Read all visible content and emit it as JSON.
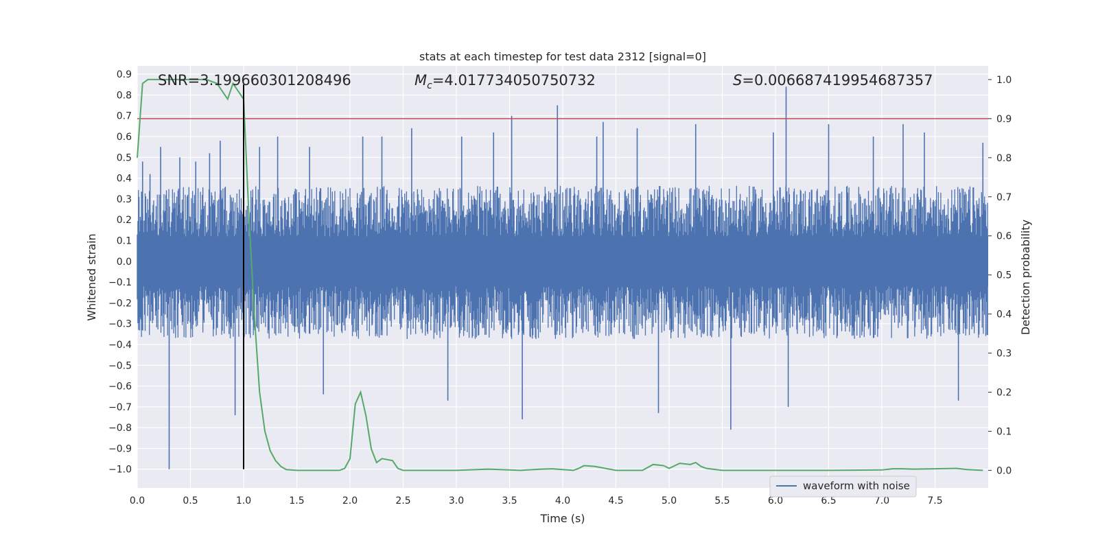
{
  "chart_data": {
    "type": "line",
    "title": "stats at each timestep for test data 2312 [signal=0]",
    "xlabel": "Time (s)",
    "ylabel_left": "Whitened strain",
    "ylabel_right": "Detection probability",
    "xlim": [
      0.0,
      8.0
    ],
    "ylim_left": [
      -1.09,
      0.94
    ],
    "ylim_right": [
      -0.045,
      1.035
    ],
    "x_ticks": [
      "0.0",
      "0.5",
      "1.0",
      "1.5",
      "2.0",
      "2.5",
      "3.0",
      "3.5",
      "4.0",
      "4.5",
      "5.0",
      "5.5",
      "6.0",
      "6.5",
      "7.0",
      "7.5"
    ],
    "y_ticks_left": [
      "0.9",
      "0.8",
      "0.7",
      "0.6",
      "0.5",
      "0.4",
      "0.3",
      "0.2",
      "0.1",
      "0.0",
      "-0.1",
      "-0.2",
      "-0.3",
      "-0.4",
      "-0.5",
      "-0.6",
      "-0.7",
      "-0.8",
      "-0.9",
      "-1.0"
    ],
    "y_ticks_right": [
      "1.0",
      "0.9",
      "0.8",
      "0.7",
      "0.6",
      "0.5",
      "0.4",
      "0.3",
      "0.2",
      "0.1",
      "0.0"
    ],
    "grid": true,
    "legend_position": "lower-right",
    "annotations": {
      "snr": "SNR=3.199660301208496",
      "mc_prefix": "M",
      "mc_sub": "c",
      "mc_value": "=4.017734050750732",
      "s_prefix": "S",
      "s_value": "=0.006687419954687357"
    },
    "threshold_line": {
      "axis": "right",
      "value": 0.9,
      "color": "#c44e52"
    },
    "vertical_marker": {
      "x": 1.0,
      "y_from": -1.0,
      "y_to": 0.85,
      "color": "#000000"
    },
    "waveform": {
      "name": "waveform with noise",
      "color": "#4c72b0",
      "x_range": [
        0.0,
        8.0
      ],
      "typical_upper": 0.33,
      "typical_lower": -0.34,
      "spikes": [
        {
          "x": 0.05,
          "y": 0.48
        },
        {
          "x": 0.12,
          "y": 0.42
        },
        {
          "x": 0.22,
          "y": 0.55
        },
        {
          "x": 0.3,
          "y": -1.0
        },
        {
          "x": 0.4,
          "y": 0.5
        },
        {
          "x": 0.55,
          "y": 0.48
        },
        {
          "x": 0.68,
          "y": 0.52
        },
        {
          "x": 0.78,
          "y": 0.58
        },
        {
          "x": 0.92,
          "y": -0.74
        },
        {
          "x": 1.15,
          "y": 0.55
        },
        {
          "x": 1.32,
          "y": 0.6
        },
        {
          "x": 1.62,
          "y": 0.55
        },
        {
          "x": 1.75,
          "y": -0.64
        },
        {
          "x": 2.12,
          "y": 0.6
        },
        {
          "x": 2.3,
          "y": 0.6
        },
        {
          "x": 2.58,
          "y": 0.64
        },
        {
          "x": 2.92,
          "y": -0.67
        },
        {
          "x": 3.05,
          "y": 0.6
        },
        {
          "x": 3.35,
          "y": 0.62
        },
        {
          "x": 3.52,
          "y": 0.7
        },
        {
          "x": 3.62,
          "y": -0.76
        },
        {
          "x": 3.95,
          "y": 0.75
        },
        {
          "x": 4.32,
          "y": 0.6
        },
        {
          "x": 4.38,
          "y": 0.67
        },
        {
          "x": 4.7,
          "y": 0.64
        },
        {
          "x": 4.9,
          "y": -0.73
        },
        {
          "x": 5.25,
          "y": 0.66
        },
        {
          "x": 5.58,
          "y": -0.81
        },
        {
          "x": 5.98,
          "y": 0.62
        },
        {
          "x": 6.1,
          "y": 0.84
        },
        {
          "x": 6.12,
          "y": -0.7
        },
        {
          "x": 6.5,
          "y": 0.66
        },
        {
          "x": 6.92,
          "y": 0.6
        },
        {
          "x": 7.2,
          "y": 0.66
        },
        {
          "x": 7.4,
          "y": 0.62
        },
        {
          "x": 7.72,
          "y": -0.67
        },
        {
          "x": 7.95,
          "y": 0.57
        }
      ]
    },
    "probability": {
      "color": "#55a868",
      "x": [
        0.0,
        0.05,
        0.1,
        0.15,
        0.25,
        0.45,
        0.65,
        0.75,
        0.8,
        0.85,
        0.9,
        0.95,
        1.0,
        1.05,
        1.1,
        1.15,
        1.2,
        1.25,
        1.3,
        1.35,
        1.4,
        1.5,
        1.6,
        1.7,
        1.8,
        1.85,
        1.9,
        1.95,
        2.0,
        2.05,
        2.1,
        2.15,
        2.2,
        2.25,
        2.3,
        2.4,
        2.45,
        2.5,
        2.6,
        2.7,
        2.8,
        3.0,
        3.3,
        3.6,
        3.8,
        3.9,
        4.0,
        4.1,
        4.15,
        4.2,
        4.3,
        4.5,
        4.65,
        4.75,
        4.85,
        4.95,
        5.0,
        5.1,
        5.2,
        5.25,
        5.3,
        5.35,
        5.5,
        5.7,
        6.0,
        6.5,
        7.0,
        7.1,
        7.2,
        7.3,
        7.5,
        7.7,
        7.8,
        7.95
      ],
      "y": [
        0.8,
        0.99,
        1.0,
        1.0,
        1.0,
        1.0,
        1.0,
        0.99,
        0.97,
        0.95,
        0.99,
        0.97,
        0.95,
        0.65,
        0.4,
        0.2,
        0.1,
        0.05,
        0.025,
        0.01,
        0.002,
        0.0,
        0.0,
        0.0,
        0.0,
        0.0,
        0.0,
        0.005,
        0.03,
        0.17,
        0.2,
        0.14,
        0.055,
        0.02,
        0.03,
        0.025,
        0.005,
        0.0,
        0.0,
        0.0,
        0.0,
        0.0,
        0.003,
        0.0,
        0.003,
        0.004,
        0.002,
        0.0,
        0.005,
        0.012,
        0.01,
        0.0,
        0.0,
        0.0,
        0.015,
        0.012,
        0.005,
        0.018,
        0.015,
        0.02,
        0.01,
        0.005,
        0.0,
        0.0,
        0.0,
        0.0,
        0.001,
        0.004,
        0.004,
        0.003,
        0.004,
        0.005,
        0.002,
        0.0
      ]
    }
  }
}
